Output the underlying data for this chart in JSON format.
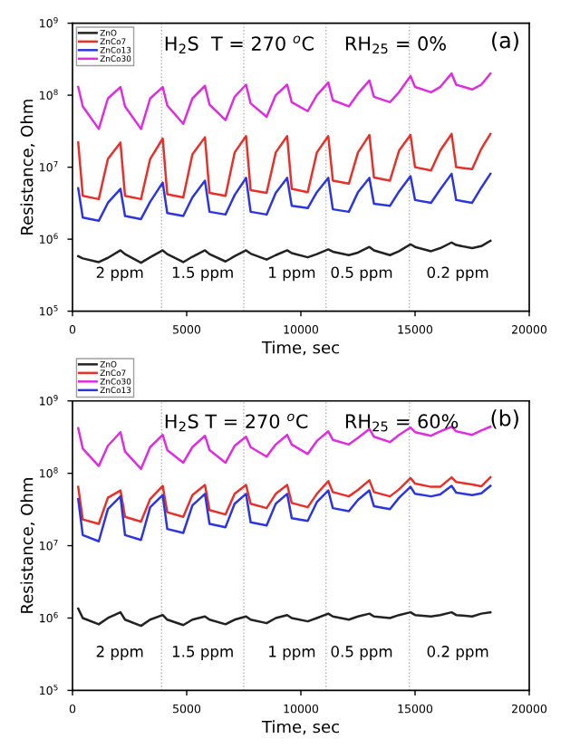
{
  "chart_data": [
    {
      "type": "line",
      "title": "H$_{2}$S  T = 270 $^{o}$C",
      "subtitle": "RH$_{25}$ = 0%",
      "xlabel": "Time, sec",
      "ylabel": "Resistance, Ohm",
      "log": "y",
      "legend": "top left",
      "marker": "none",
      "line_style": "solid",
      "grid": false,
      "xlim": [
        0,
        20000
      ],
      "xticks": [
        0,
        5000,
        10000,
        15000,
        20000
      ],
      "ylim": [
        100000,
        1000000000
      ],
      "yticks": [
        {
          "value": 100000,
          "label": "10$^{5}$"
        },
        {
          "value": 1000000,
          "label": "10$^{6}$"
        },
        {
          "value": 10000000,
          "label": "10$^{7}$"
        },
        {
          "value": 100000000,
          "label": "10$^{8}$"
        },
        {
          "value": 1000000000,
          "label": "10$^{9}$"
        }
      ],
      "x": [
        250,
        450,
        1150,
        1550,
        2100,
        2300,
        3000,
        3400,
        3950,
        4150,
        4850,
        5250,
        5800,
        6000,
        6700,
        7100,
        7600,
        7800,
        8500,
        8900,
        9400,
        9600,
        10300,
        10700,
        11200,
        11400,
        12100,
        12500,
        13000,
        13200,
        13900,
        14300,
        14800,
        15000,
        15700,
        16100,
        16600,
        16800,
        17500,
        17900,
        18300
      ],
      "series": [
        {
          "name": "ZnO",
          "color": "#222222",
          "values": [
            580000.0,
            540000.0,
            480000.0,
            550000.0,
            700000.0,
            620000.0,
            470000.0,
            560000.0,
            700000.0,
            620000.0,
            480000.0,
            570000.0,
            700000.0,
            620000.0,
            490000.0,
            580000.0,
            700000.0,
            630000.0,
            520000.0,
            600000.0,
            700000.0,
            640000.0,
            560000.0,
            620000.0,
            720000.0,
            670000.0,
            600000.0,
            650000.0,
            780000.0,
            700000.0,
            600000.0,
            680000.0,
            850000.0,
            780000.0,
            680000.0,
            750000.0,
            900000.0,
            830000.0,
            750000.0,
            800000.0,
            950000.0
          ]
        },
        {
          "name": "ZnCo7",
          "color": "#e8302a",
          "values": [
            22000000.0,
            4000000.0,
            3600000.0,
            13000000.0,
            22000000.0,
            4000000.0,
            3600000.0,
            13000000.0,
            25000000.0,
            4200000.0,
            3800000.0,
            15000000.0,
            26000000.0,
            4400000.0,
            4000000.0,
            16000000.0,
            27000000.0,
            4800000.0,
            4400000.0,
            16000000.0,
            27000000.0,
            5000000.0,
            4500000.0,
            16000000.0,
            27000000.0,
            6500000.0,
            5900000.0,
            16000000.0,
            28000000.0,
            7200000.0,
            6500000.0,
            17000000.0,
            28000000.0,
            10000000.0,
            9000000.0,
            17000000.0,
            29000000.0,
            10000000.0,
            9400000.0,
            18000000.0,
            29000000.0
          ]
        },
        {
          "name": "ZnCo13",
          "color": "#2b35e0",
          "values": [
            5100000.0,
            2000000.0,
            1800000.0,
            3200000.0,
            5000000.0,
            2100000.0,
            1900000.0,
            3300000.0,
            6100000.0,
            2300000.0,
            2100000.0,
            3800000.0,
            6500000.0,
            2400000.0,
            2200000.0,
            4100000.0,
            7100000.0,
            2400000.0,
            2200000.0,
            4400000.0,
            7100000.0,
            2900000.0,
            2700000.0,
            4500000.0,
            7100000.0,
            2600000.0,
            2400000.0,
            4500000.0,
            7100000.0,
            3100000.0,
            2900000.0,
            4600000.0,
            7500000.0,
            3500000.0,
            3200000.0,
            4900000.0,
            8100000.0,
            3500000.0,
            3200000.0,
            5200000.0,
            8100000.0
          ]
        },
        {
          "name": "ZnCo30",
          "color": "#e02ce0",
          "values": [
            130000000.0,
            70000000.0,
            34000000.0,
            90000000.0,
            130000000.0,
            70000000.0,
            34000000.0,
            90000000.0,
            130000000.0,
            72000000.0,
            40000000.0,
            90000000.0,
            135000000.0,
            74000000.0,
            45000000.0,
            95000000.0,
            140000000.0,
            77000000.0,
            50000000.0,
            100000000.0,
            140000000.0,
            80000000.0,
            60000000.0,
            100000000.0,
            150000000.0,
            85000000.0,
            70000000.0,
            105000000.0,
            160000000.0,
            95000000.0,
            80000000.0,
            110000000.0,
            185000000.0,
            130000000.0,
            110000000.0,
            130000000.0,
            200000000.0,
            140000000.0,
            120000000.0,
            140000000.0,
            200000000.0
          ]
        }
      ],
      "ref_lines": [
        {
          "axis": "x",
          "value": 3900,
          "color": "#b0b0b0",
          "line_style": "dotted"
        },
        {
          "axis": "x",
          "value": 7500,
          "color": "#b0b0b0",
          "line_style": "dotted"
        },
        {
          "axis": "x",
          "value": 11100,
          "color": "#b0b0b0",
          "line_style": "dotted"
        },
        {
          "axis": "x",
          "value": 14750,
          "color": "#b0b0b0",
          "line_style": "dotted"
        }
      ],
      "annotations": [
        "(a)",
        "2 ppm",
        "1.5 ppm",
        "1 ppm",
        "0.5 ppm",
        "0.2 ppm"
      ]
    },
    {
      "type": "line",
      "title": "H$_{2}$S T = 270 $^{o}$C",
      "subtitle": "RH$_{25}$ = 60%",
      "xlabel": "Time, sec",
      "ylabel": "Resistance, Ohm",
      "log": "y",
      "legend": "top left",
      "marker": "none",
      "line_style": "solid",
      "grid": false,
      "xlim": [
        0,
        20000
      ],
      "xticks": [
        0,
        5000,
        10000,
        15000,
        20000
      ],
      "ylim": [
        100000,
        1000000000
      ],
      "yticks": [
        {
          "value": 100000,
          "label": "10$^{5}$"
        },
        {
          "value": 1000000,
          "label": "10$^{6}$"
        },
        {
          "value": 10000000,
          "label": "10$^{7}$"
        },
        {
          "value": 100000000,
          "label": "10$^{8}$"
        },
        {
          "value": 1000000000,
          "label": "10$^{9}$"
        }
      ],
      "x": [
        250,
        450,
        1150,
        1550,
        2100,
        2300,
        3000,
        3400,
        3950,
        4150,
        4850,
        5250,
        5800,
        6000,
        6700,
        7100,
        7600,
        7800,
        8500,
        8900,
        9400,
        9600,
        10300,
        10700,
        11200,
        11400,
        12100,
        12500,
        13000,
        13200,
        13900,
        14300,
        14800,
        15000,
        15700,
        16100,
        16600,
        16800,
        17500,
        17900,
        18300
      ],
      "series": [
        {
          "name": "ZnO",
          "color": "#222222",
          "values": [
            1350000.0,
            1000000.0,
            820000.0,
            1000000.0,
            1200000.0,
            950000.0,
            780000.0,
            950000.0,
            1100000.0,
            950000.0,
            800000.0,
            950000.0,
            1050000.0,
            950000.0,
            820000.0,
            950000.0,
            1050000.0,
            950000.0,
            850000.0,
            1000000.0,
            1100000.0,
            1000000.0,
            900000.0,
            1000000.0,
            1150000.0,
            1050000.0,
            950000.0,
            1050000.0,
            1150000.0,
            1050000.0,
            1000000.0,
            1100000.0,
            1200000.0,
            1100000.0,
            1050000.0,
            1100000.0,
            1200000.0,
            1100000.0,
            1050000.0,
            1150000.0,
            1200000.0
          ]
        },
        {
          "name": "ZnCo7",
          "color": "#e8302a",
          "values": [
            65000000.0,
            23000000.0,
            20000000.0,
            46000000.0,
            58000000.0,
            25000000.0,
            21500000.0,
            44000000.0,
            67000000.0,
            29000000.0,
            25000000.0,
            50000000.0,
            69000000.0,
            31000000.0,
            27000000.0,
            52000000.0,
            69000000.0,
            38000000.0,
            33000000.0,
            52000000.0,
            69000000.0,
            39000000.0,
            34000000.0,
            52000000.0,
            78000000.0,
            55000000.0,
            48000000.0,
            59000000.0,
            80000000.0,
            55000000.0,
            48000000.0,
            60000000.0,
            86000000.0,
            72000000.0,
            65000000.0,
            65000000.0,
            88000000.0,
            76000000.0,
            70000000.0,
            66000000.0,
            88000000.0
          ]
        },
        {
          "name": "ZnCo30",
          "color": "#e02ce0",
          "values": [
            420000000.0,
            220000000.0,
            126000000.0,
            240000000.0,
            370000000.0,
            200000000.0,
            115000000.0,
            230000000.0,
            340000000.0,
            210000000.0,
            140000000.0,
            230000000.0,
            330000000.0,
            210000000.0,
            140000000.0,
            240000000.0,
            320000000.0,
            230000000.0,
            170000000.0,
            250000000.0,
            340000000.0,
            250000000.0,
            185000000.0,
            280000000.0,
            380000000.0,
            290000000.0,
            250000000.0,
            310000000.0,
            410000000.0,
            320000000.0,
            270000000.0,
            340000000.0,
            430000000.0,
            370000000.0,
            330000000.0,
            380000000.0,
            440000000.0,
            380000000.0,
            340000000.0,
            390000000.0,
            440000000.0
          ]
        },
        {
          "name": "ZnCo13",
          "color": "#2b35e0",
          "values": [
            44000000.0,
            14000000.0,
            11500000.0,
            32000000.0,
            48000000.0,
            14000000.0,
            12000000.0,
            34000000.0,
            50000000.0,
            17000000.0,
            15000000.0,
            36000000.0,
            52000000.0,
            20000000.0,
            18000000.0,
            38000000.0,
            52000000.0,
            21000000.0,
            19000000.0,
            38000000.0,
            52000000.0,
            24000000.0,
            22000000.0,
            40000000.0,
            58000000.0,
            33000000.0,
            30000000.0,
            43000000.0,
            58000000.0,
            35000000.0,
            32000000.0,
            46000000.0,
            65000000.0,
            52000000.0,
            48000000.0,
            51000000.0,
            67000000.0,
            54000000.0,
            50000000.0,
            53000000.0,
            67000000.0
          ]
        }
      ],
      "ref_lines": [
        {
          "axis": "x",
          "value": 3900,
          "color": "#b0b0b0",
          "line_style": "dotted"
        },
        {
          "axis": "x",
          "value": 7500,
          "color": "#b0b0b0",
          "line_style": "dotted"
        },
        {
          "axis": "x",
          "value": 11100,
          "color": "#b0b0b0",
          "line_style": "dotted"
        },
        {
          "axis": "x",
          "value": 14750,
          "color": "#b0b0b0",
          "line_style": "dotted"
        }
      ],
      "annotations": [
        "(b)",
        "2 ppm",
        "1.5 ppm",
        "1 ppm",
        "0.5 ppm",
        "0.2 ppm"
      ]
    }
  ]
}
